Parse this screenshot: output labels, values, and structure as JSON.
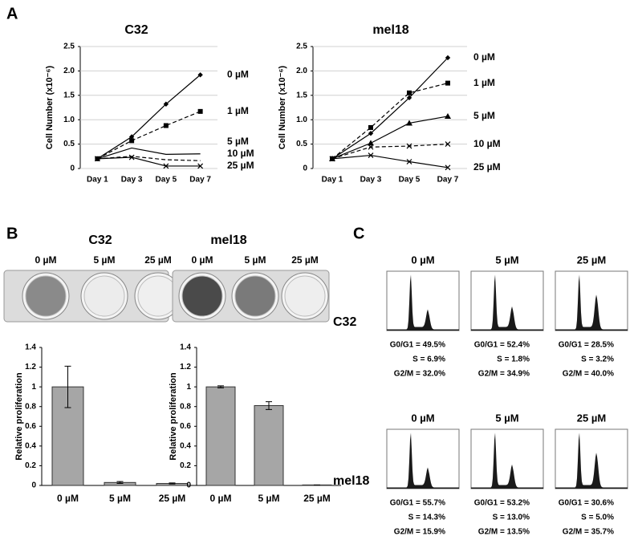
{
  "panel_labels": [
    "A",
    "B",
    "C"
  ],
  "chart_data": [
    {
      "type": "line",
      "title": "C32",
      "ylabel": "Cell Number (x10⁻⁶)",
      "categories": [
        "Day 1",
        "Day 3",
        "Day 5",
        "Day 7"
      ],
      "ylim": [
        0,
        2.5
      ],
      "yticks": [
        0,
        0.5,
        {
          "value": 1,
          "label": "1.0"
        },
        1.5,
        {
          "value": 2,
          "label": "2.0"
        },
        2.5
      ],
      "grid": true,
      "series": [
        {
          "name": "0 µM",
          "color": "#000000",
          "dash": false,
          "marker": "diamond",
          "values": [
            0.2,
            0.65,
            1.32,
            1.92
          ]
        },
        {
          "name": "1 µM",
          "color": "#000000",
          "dash": true,
          "marker": "square",
          "values": [
            0.2,
            0.57,
            0.88,
            1.17
          ]
        },
        {
          "name": "5 µM",
          "color": "#000000",
          "dash": false,
          "marker": "none",
          "values": [
            0.2,
            0.42,
            0.29,
            0.3
          ]
        },
        {
          "name": "10 µM",
          "color": "#000000",
          "dash": true,
          "marker": "none",
          "values": [
            0.2,
            0.25,
            0.18,
            0.16
          ]
        },
        {
          "name": "25 µM",
          "color": "#000000",
          "dash": false,
          "marker": "x",
          "values": [
            0.2,
            0.23,
            0.05,
            0.05
          ]
        }
      ]
    },
    {
      "type": "line",
      "title": "mel18",
      "ylabel": "Cell Number (x10⁻⁶)",
      "categories": [
        "Day 1",
        "Day 3",
        "Day 5",
        "Day 7"
      ],
      "ylim": [
        0,
        2.5
      ],
      "yticks": [
        0,
        0.5,
        {
          "value": 1,
          "label": "1.0"
        },
        1.5,
        {
          "value": 2,
          "label": "2.0"
        },
        2.5
      ],
      "grid": true,
      "series": [
        {
          "name": "0 µM",
          "color": "#000000",
          "dash": false,
          "marker": "diamond",
          "values": [
            0.2,
            0.72,
            1.45,
            2.27
          ]
        },
        {
          "name": "1 µM",
          "color": "#000000",
          "dash": true,
          "marker": "square",
          "values": [
            0.2,
            0.84,
            1.55,
            1.75
          ]
        },
        {
          "name": "5 µM",
          "color": "#000000",
          "dash": false,
          "marker": "triangle",
          "values": [
            0.2,
            0.52,
            0.93,
            1.07
          ]
        },
        {
          "name": "10 µM",
          "color": "#000000",
          "dash": true,
          "marker": "x",
          "values": [
            0.2,
            0.44,
            0.46,
            0.5
          ]
        },
        {
          "name": "25 µM",
          "color": "#000000",
          "dash": false,
          "marker": "x",
          "values": [
            0.2,
            0.27,
            0.14,
            0.02
          ]
        }
      ]
    },
    {
      "type": "bar",
      "title": "C32",
      "ylabel": "Relative proliferation",
      "categories": [
        "0 µM",
        "5 µM",
        "25 µM"
      ],
      "values": [
        1,
        0.03,
        0.02
      ],
      "errors": [
        0.21,
        0.01,
        0.005
      ],
      "color": "#a6a6a6",
      "ylim": [
        0,
        1.4
      ],
      "yticks": [
        0,
        0.2,
        0.4,
        0.6,
        0.8,
        1,
        1.2,
        1.4
      ],
      "grid": false
    },
    {
      "type": "bar",
      "title": "mel18",
      "ylabel": "Relative proliferation",
      "categories": [
        "0 µM",
        "5 µM",
        "25 µM"
      ],
      "values": [
        1,
        0.81,
        0.005
      ],
      "errors": [
        0.01,
        0.04,
        0
      ],
      "color": "#a6a6a6",
      "ylim": [
        0,
        1.4
      ],
      "yticks": [
        0,
        0.2,
        0.4,
        0.6,
        0.8,
        1,
        1.2,
        1.4
      ],
      "grid": false
    }
  ],
  "cell_cycle": {
    "conditions": [
      "0 µM",
      "5 µM",
      "25 µM"
    ],
    "rows": [
      {
        "cell_line": "C32",
        "stats": [
          [
            "G0/G1 = 49.5%",
            "S = 6.9%",
            "G2/M = 32.0%"
          ],
          [
            "G0/G1 = 52.4%",
            "S = 1.8%",
            "G2/M = 34.9%"
          ],
          [
            "G0/G1 = 28.5%",
            "S = 3.2%",
            "G2/M = 40.0%"
          ]
        ]
      },
      {
        "cell_line": "mel18",
        "stats": [
          [
            "G0/G1 = 55.7%",
            "S = 14.3%",
            "G2/M = 15.9%"
          ],
          [
            "G0/G1 = 53.2%",
            "S = 13.0%",
            "G2/M = 13.5%"
          ],
          [
            "G0/G1 = 30.6%",
            "S = 5.0%",
            "G2/M = 35.7%"
          ]
        ]
      }
    ]
  }
}
